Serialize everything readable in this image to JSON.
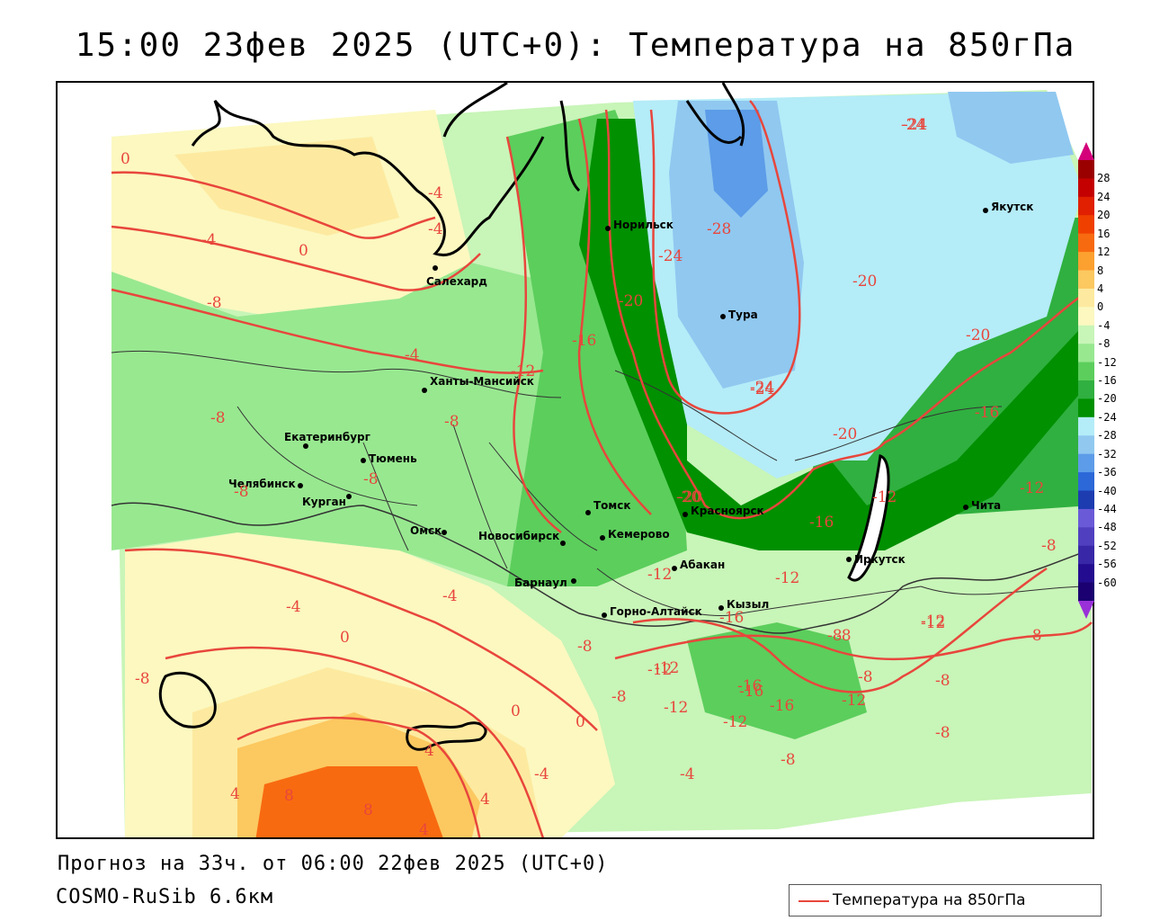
{
  "title": "15:00 23фев 2025 (UTC+0): Температура на 850гПа",
  "footer": {
    "forecast": "Прогноз на 33ч. от 06:00 22фев 2025 (UTC+0)",
    "model": "COSMO-RuSib 6.6км"
  },
  "legend": {
    "series_label": "Температура на 850гПа",
    "line_color": "#e8463c"
  },
  "colorbar": {
    "ticks": [
      "28",
      "24",
      "20",
      "16",
      "12",
      "8",
      "4",
      "0",
      "-4",
      "-8",
      "-12",
      "-16",
      "-20",
      "-24",
      "-28",
      "-32",
      "-36",
      "-40",
      "-44",
      "-48",
      "-52",
      "-56",
      "-60"
    ],
    "colors": [
      "#9a0000",
      "#c40000",
      "#e02000",
      "#f04000",
      "#f86a10",
      "#fca030",
      "#fcc860",
      "#fdeaa0",
      "#fcf8c0",
      "#c8f5b8",
      "#98e890",
      "#5cce5c",
      "#30b040",
      "#009000",
      "#b4ecf8",
      "#90c8f0",
      "#5c9ce8",
      "#2c68d8",
      "#1c3cb0",
      "#6a5ad8",
      "#5040c0",
      "#3828a8",
      "#240c90",
      "#1a0070"
    ]
  },
  "cities": [
    {
      "name": "Норильск"
    },
    {
      "name": "Якутск"
    },
    {
      "name": "Салехард"
    },
    {
      "name": "Тура"
    },
    {
      "name": "Ханты-Мансийск"
    },
    {
      "name": "Екатеринбург"
    },
    {
      "name": "Тюмень"
    },
    {
      "name": "Челябинск"
    },
    {
      "name": "Курган"
    },
    {
      "name": "Омск"
    },
    {
      "name": "Новосибирск"
    },
    {
      "name": "Томск"
    },
    {
      "name": "Кемерово"
    },
    {
      "name": "Красноярск"
    },
    {
      "name": "Барнаул"
    },
    {
      "name": "Абакан"
    },
    {
      "name": "Иркутск"
    },
    {
      "name": "Чита"
    },
    {
      "name": "Горно-Алтайск"
    },
    {
      "name": "Кызыл"
    }
  ],
  "contour_labels": [
    "0",
    "-4",
    "-4",
    "0",
    "-4",
    "-8",
    "-4",
    "-8",
    "-8",
    "-8",
    "-8",
    "-4",
    "0",
    "-8",
    "4",
    "-4",
    "4",
    "8",
    "8",
    "4",
    "0",
    "0",
    "4",
    "-4",
    "-8",
    "-12",
    "-16",
    "-20",
    "-24",
    "-28",
    "-24",
    "-20",
    "-20",
    "-16",
    "-12",
    "-12",
    "-20",
    "-24",
    "-20",
    "-20",
    "-16",
    "-16",
    "-12",
    "-12",
    "-12",
    "-12",
    "-8",
    "-8",
    "-8",
    "-8",
    "-12",
    "-16",
    "-12",
    "-16",
    "-12",
    "-12",
    "-16",
    "-8",
    "-8",
    "-4",
    "-8",
    "-8",
    "-8",
    "-12",
    "-24",
    "-24"
  ]
}
